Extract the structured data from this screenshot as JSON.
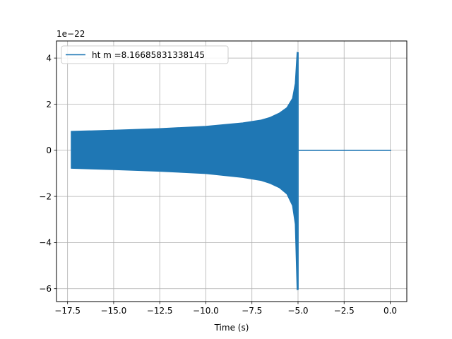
{
  "chart_data": {
    "type": "line",
    "xlabel": "Time (s)",
    "ylabel": "",
    "title": "",
    "y_offset_label": "1e−22",
    "xlim": [
      -18.1,
      0.9
    ],
    "ylim": [
      -6.56,
      4.74
    ],
    "grid": true,
    "legend_position": "top-left",
    "x_ticks": [
      {
        "value": -17.5,
        "label": "−17.5"
      },
      {
        "value": -15.0,
        "label": "−15.0"
      },
      {
        "value": -12.5,
        "label": "−12.5"
      },
      {
        "value": -10.0,
        "label": "−10.0"
      },
      {
        "value": -7.5,
        "label": "−7.5"
      },
      {
        "value": -5.0,
        "label": "−5.0"
      },
      {
        "value": -2.5,
        "label": "−2.5"
      },
      {
        "value": 0.0,
        "label": "0.0"
      }
    ],
    "y_ticks": [
      {
        "value": -6,
        "label": "−6"
      },
      {
        "value": -4,
        "label": "−4"
      },
      {
        "value": -2,
        "label": "−2"
      },
      {
        "value": 0,
        "label": "0"
      },
      {
        "value": 2,
        "label": "2"
      },
      {
        "value": 4,
        "label": "4"
      }
    ],
    "series": [
      {
        "name": "ht m =8.16685831338145",
        "color": "#1f77b4",
        "signal_start": -17.3,
        "merger_time": -5.0,
        "end_time": 0.05,
        "envelope": [
          {
            "x": -17.3,
            "upper": 0.82,
            "lower": -0.78
          },
          {
            "x": -15.0,
            "upper": 0.87,
            "lower": -0.84
          },
          {
            "x": -12.5,
            "upper": 0.94,
            "lower": -0.91
          },
          {
            "x": -10.0,
            "upper": 1.04,
            "lower": -1.01
          },
          {
            "x": -8.0,
            "upper": 1.19,
            "lower": -1.18
          },
          {
            "x": -7.0,
            "upper": 1.31,
            "lower": -1.31
          },
          {
            "x": -6.5,
            "upper": 1.43,
            "lower": -1.44
          },
          {
            "x": -6.0,
            "upper": 1.62,
            "lower": -1.63
          },
          {
            "x": -5.6,
            "upper": 1.85,
            "lower": -1.9
          },
          {
            "x": -5.3,
            "upper": 2.25,
            "lower": -2.4
          },
          {
            "x": -5.15,
            "upper": 2.9,
            "lower": -3.2
          },
          {
            "x": -5.05,
            "upper": 4.25,
            "lower": -6.05
          }
        ]
      }
    ]
  }
}
